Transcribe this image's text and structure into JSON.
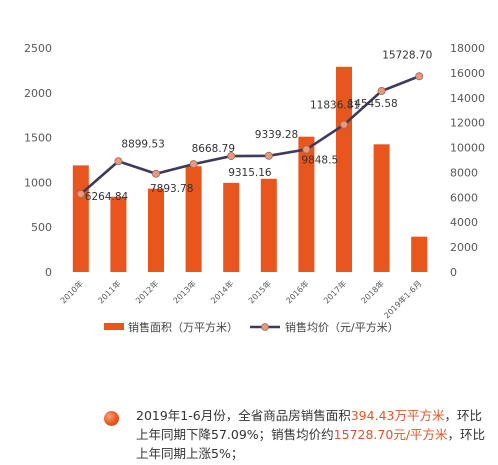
{
  "chart_data": {
    "type": "bar+line",
    "categories": [
      "2010年",
      "2011年",
      "2012年",
      "2013年",
      "2014年",
      "2015年",
      "2016年",
      "2017年",
      "2018年",
      "2019年1-6月"
    ],
    "series": [
      {
        "name": "销售面积（万平方米）",
        "type": "bar",
        "axis": "left",
        "values": [
          1190,
          840,
          930,
          1180,
          995,
          1040,
          1510,
          2290,
          1425,
          394.43
        ]
      },
      {
        "name": "销售均价（元/平方米）",
        "type": "line",
        "axis": "right",
        "values": [
          6264.84,
          8899.53,
          7893.78,
          8668.79,
          9315.16,
          9339.28,
          9848.5,
          11836.81,
          14545.58,
          15728.7
        ],
        "labels": [
          "6264.84",
          "8899.53",
          "7893.78",
          "8668.79",
          "9315.16",
          "9339.28",
          "9848.5",
          "11836.81",
          "14545.58",
          "15728.70"
        ]
      }
    ],
    "y_left": {
      "ylim": [
        0,
        2500
      ],
      "ticks": [
        "0",
        "500",
        "1000",
        "1500",
        "2000",
        "2500"
      ]
    },
    "y_right": {
      "ylim": [
        0,
        18000
      ],
      "ticks": [
        "0",
        "2000",
        "4000",
        "6000",
        "8000",
        "10000",
        "12000",
        "14000",
        "16000",
        "18000"
      ]
    },
    "grid": false,
    "legend": "bottom",
    "colors": {
      "bar": "#e8561d",
      "line": "#3e3a5a",
      "marker_fill": "#e39a7e",
      "axis_text": "#595959"
    }
  },
  "summary": {
    "part1": "2019年1-6月份，全省商品房销售面积",
    "area": "394.43万平方米",
    "part2": "，环比上年同期下降57.09%；销售均价约",
    "price": "15728.70元/平方米",
    "part3": "，环比上年同期上涨5%；"
  }
}
